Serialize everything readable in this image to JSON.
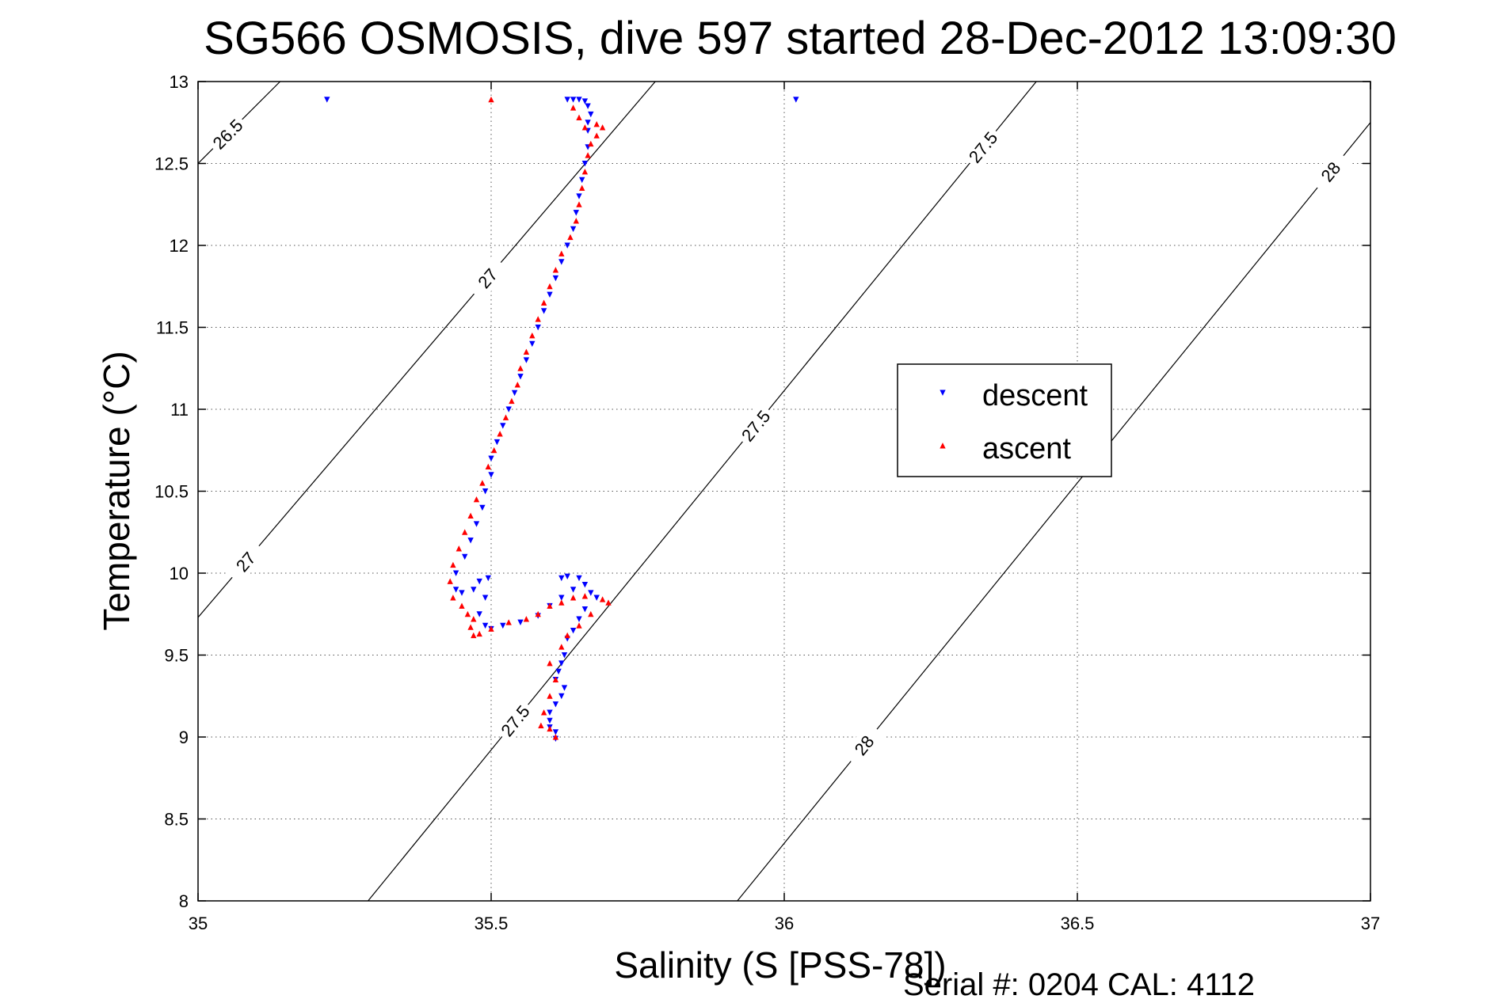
{
  "chart_data": {
    "type": "scatter",
    "title": "SG566 OSMOSIS, dive 597 started 28-Dec-2012 13:09:30",
    "xlabel": "Salinity (S [PSS-78])",
    "ylabel": "Temperature (°C)",
    "footer": "Serial #: 0204  CAL: 4112",
    "xlim": [
      35,
      37
    ],
    "ylim": [
      8,
      13
    ],
    "xticks": [
      "35",
      "35.5",
      "36",
      "36.5",
      "37"
    ],
    "yticks": [
      "8",
      "8.5",
      "9",
      "9.5",
      "10",
      "10.5",
      "11",
      "11.5",
      "12",
      "12.5",
      "13"
    ],
    "grid": true,
    "legend_position": "center-right",
    "colors": {
      "descent": "#0000ff",
      "ascent": "#ff0000",
      "contour": "#000000"
    },
    "series": [
      {
        "name": "descent",
        "marker": "triangle-down",
        "color": "#0000ff",
        "points": [
          [
            35.22,
            12.89
          ],
          [
            36.02,
            12.89
          ],
          [
            35.63,
            12.89
          ],
          [
            35.64,
            12.89
          ],
          [
            35.65,
            12.89
          ],
          [
            35.66,
            12.88
          ],
          [
            35.665,
            12.85
          ],
          [
            35.67,
            12.8
          ],
          [
            35.665,
            12.75
          ],
          [
            35.665,
            12.7
          ],
          [
            35.665,
            12.6
          ],
          [
            35.66,
            12.5
          ],
          [
            35.655,
            12.4
          ],
          [
            35.65,
            12.3
          ],
          [
            35.645,
            12.2
          ],
          [
            35.64,
            12.1
          ],
          [
            35.63,
            12.0
          ],
          [
            35.62,
            11.9
          ],
          [
            35.61,
            11.8
          ],
          [
            35.6,
            11.7
          ],
          [
            35.59,
            11.6
          ],
          [
            35.58,
            11.5
          ],
          [
            35.57,
            11.4
          ],
          [
            35.56,
            11.3
          ],
          [
            35.55,
            11.2
          ],
          [
            35.54,
            11.1
          ],
          [
            35.53,
            11.0
          ],
          [
            35.52,
            10.9
          ],
          [
            35.51,
            10.8
          ],
          [
            35.5,
            10.7
          ],
          [
            35.5,
            10.6
          ],
          [
            35.49,
            10.5
          ],
          [
            35.485,
            10.4
          ],
          [
            35.475,
            10.3
          ],
          [
            35.465,
            10.2
          ],
          [
            35.455,
            10.1
          ],
          [
            35.44,
            10.0
          ],
          [
            35.44,
            9.9
          ],
          [
            35.45,
            9.88
          ],
          [
            35.47,
            9.9
          ],
          [
            35.48,
            9.95
          ],
          [
            35.495,
            9.97
          ],
          [
            35.49,
            9.85
          ],
          [
            35.48,
            9.75
          ],
          [
            35.49,
            9.68
          ],
          [
            35.5,
            9.66
          ],
          [
            35.52,
            9.68
          ],
          [
            35.55,
            9.7
          ],
          [
            35.58,
            9.74
          ],
          [
            35.6,
            9.8
          ],
          [
            35.62,
            9.85
          ],
          [
            35.64,
            9.9
          ],
          [
            35.62,
            9.97
          ],
          [
            35.63,
            9.98
          ],
          [
            35.65,
            9.97
          ],
          [
            35.66,
            9.93
          ],
          [
            35.67,
            9.88
          ],
          [
            35.68,
            9.85
          ],
          [
            35.66,
            9.78
          ],
          [
            35.65,
            9.72
          ],
          [
            35.64,
            9.65
          ],
          [
            35.63,
            9.6
          ],
          [
            35.625,
            9.5
          ],
          [
            35.62,
            9.45
          ],
          [
            35.615,
            9.4
          ],
          [
            35.61,
            9.35
          ],
          [
            35.625,
            9.3
          ],
          [
            35.62,
            9.25
          ],
          [
            35.61,
            9.2
          ],
          [
            35.6,
            9.15
          ],
          [
            35.6,
            9.1
          ],
          [
            35.6,
            9.06
          ],
          [
            35.61,
            9.03
          ],
          [
            35.61,
            8.99
          ]
        ]
      },
      {
        "name": "ascent",
        "marker": "triangle-up",
        "color": "#ff0000",
        "points": [
          [
            35.5,
            12.89
          ],
          [
            35.64,
            12.84
          ],
          [
            35.65,
            12.78
          ],
          [
            35.66,
            12.72
          ],
          [
            35.68,
            12.74
          ],
          [
            35.69,
            12.72
          ],
          [
            35.68,
            12.67
          ],
          [
            35.67,
            12.62
          ],
          [
            35.665,
            12.55
          ],
          [
            35.66,
            12.45
          ],
          [
            35.655,
            12.35
          ],
          [
            35.65,
            12.25
          ],
          [
            35.645,
            12.15
          ],
          [
            35.635,
            12.05
          ],
          [
            35.62,
            11.95
          ],
          [
            35.61,
            11.85
          ],
          [
            35.6,
            11.75
          ],
          [
            35.59,
            11.65
          ],
          [
            35.58,
            11.55
          ],
          [
            35.57,
            11.45
          ],
          [
            35.56,
            11.35
          ],
          [
            35.55,
            11.25
          ],
          [
            35.545,
            11.15
          ],
          [
            35.535,
            11.05
          ],
          [
            35.525,
            10.95
          ],
          [
            35.515,
            10.85
          ],
          [
            35.505,
            10.75
          ],
          [
            35.495,
            10.65
          ],
          [
            35.485,
            10.55
          ],
          [
            35.475,
            10.45
          ],
          [
            35.465,
            10.35
          ],
          [
            35.455,
            10.25
          ],
          [
            35.445,
            10.15
          ],
          [
            35.435,
            10.05
          ],
          [
            35.43,
            9.95
          ],
          [
            35.435,
            9.85
          ],
          [
            35.45,
            9.8
          ],
          [
            35.46,
            9.75
          ],
          [
            35.47,
            9.72
          ],
          [
            35.465,
            9.67
          ],
          [
            35.47,
            9.62
          ],
          [
            35.48,
            9.63
          ],
          [
            35.5,
            9.66
          ],
          [
            35.53,
            9.7
          ],
          [
            35.56,
            9.72
          ],
          [
            35.58,
            9.75
          ],
          [
            35.6,
            9.8
          ],
          [
            35.62,
            9.82
          ],
          [
            35.64,
            9.85
          ],
          [
            35.66,
            9.86
          ],
          [
            35.69,
            9.84
          ],
          [
            35.7,
            9.82
          ],
          [
            35.67,
            9.75
          ],
          [
            35.65,
            9.68
          ],
          [
            35.63,
            9.62
          ],
          [
            35.62,
            9.55
          ],
          [
            35.6,
            9.45
          ],
          [
            35.61,
            9.35
          ],
          [
            35.6,
            9.25
          ],
          [
            35.59,
            9.15
          ],
          [
            35.585,
            9.07
          ],
          [
            35.6,
            9.05
          ],
          [
            35.61,
            9.0
          ]
        ]
      }
    ],
    "contours": [
      {
        "label": "26.5",
        "points": [
          [
            35.0,
            12.5
          ],
          [
            35.14,
            13.0
          ]
        ],
        "label_at": [
          35.06,
          12.68
        ]
      },
      {
        "label": "27",
        "points": [
          [
            35.0,
            9.73
          ],
          [
            35.78,
            13.0
          ]
        ],
        "label_at": [
          35.08,
          10.07
        ]
      },
      {
        "label": "27",
        "label_at": [
          35.49,
          11.8
        ]
      },
      {
        "label": "27.5",
        "points": [
          [
            35.29,
            8.0
          ],
          [
            36.43,
            13.0
          ]
        ],
        "label_at": [
          35.02,
          9.1
        ]
      },
      {
        "label": "27.5",
        "label_at": [
          35.9,
          10.9
        ]
      },
      {
        "label": "27.5",
        "label_at": [
          36.33,
          12.6
        ]
      },
      {
        "label": "28",
        "points": [
          [
            35.92,
            8.0
          ],
          [
            37.0,
            12.75
          ]
        ],
        "label_at": [
          36.12,
          8.95
        ]
      },
      {
        "label": "28",
        "label_at": [
          36.94,
          12.45
        ]
      }
    ]
  }
}
